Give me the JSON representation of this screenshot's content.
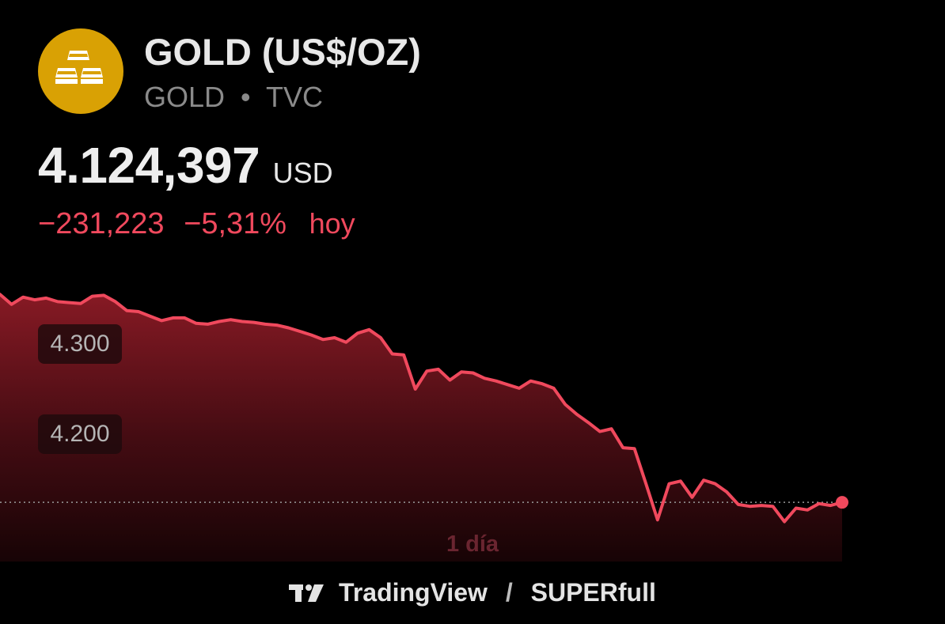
{
  "header": {
    "name": "GOLD (US$/OZ)",
    "symbol": "GOLD",
    "separator": "•",
    "exchange": "TVC",
    "logo_icon": "gold-bars-icon",
    "logo_color": "#d9a104"
  },
  "quote": {
    "price": "4.124,397",
    "currency": "USD",
    "change": "−231,223",
    "change_percent": "−5,31%",
    "period_word": "hoy",
    "change_color": "#f0495d"
  },
  "footer": {
    "brand": "TradingView",
    "separator": "/",
    "partner": "SUPERfull"
  },
  "chart_data": {
    "type": "area",
    "period_label": "1 día",
    "y_tick_labels": [
      "4.300",
      "4.200"
    ],
    "y_ticks": [
      4300,
      4200
    ],
    "ylim": [
      4081,
      4370
    ],
    "last_value": 4124.397,
    "line_color": "#f0495d",
    "grid": false,
    "values": [
      4355,
      4344,
      4352,
      4349,
      4351,
      4347,
      4346,
      4345,
      4353,
      4354,
      4347,
      4337,
      4336,
      4331,
      4326,
      4329,
      4329,
      4323,
      4322,
      4325,
      4327,
      4325,
      4324,
      4322,
      4321,
      4318,
      4314,
      4310,
      4305,
      4307,
      4302,
      4312,
      4316,
      4307,
      4289,
      4288,
      4250,
      4270,
      4272,
      4260,
      4269,
      4268,
      4262,
      4259,
      4255,
      4251,
      4259,
      4256,
      4251,
      4233,
      4222,
      4213,
      4203,
      4206,
      4185,
      4184,
      4145,
      4105,
      4145,
      4148,
      4130,
      4149,
      4145,
      4136,
      4122,
      4120,
      4121,
      4120,
      4103,
      4118,
      4116,
      4123,
      4121,
      4124.397
    ]
  }
}
